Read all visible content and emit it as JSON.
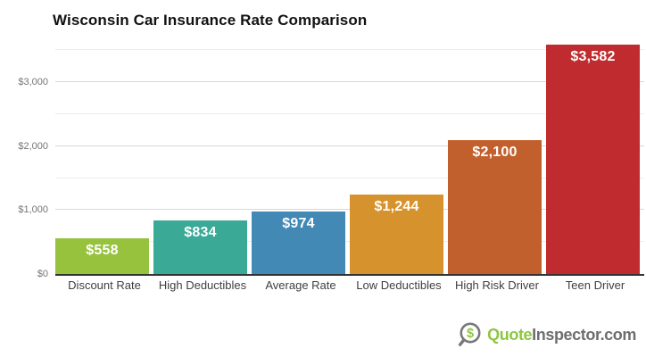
{
  "chart_data": {
    "type": "bar",
    "title": "Wisconsin Car Insurance Rate Comparison",
    "categories": [
      "Discount Rate",
      "High Deductibles",
      "Average Rate",
      "Low Deductibles",
      "High Risk Driver",
      "Teen Driver"
    ],
    "values": [
      558,
      834,
      974,
      1244,
      2100,
      3582
    ],
    "value_labels": [
      "$558",
      "$834",
      "$974",
      "$1,244",
      "$2,100",
      "$3,582"
    ],
    "bar_colors": [
      "#96c23e",
      "#3aa996",
      "#4289b5",
      "#d6922d",
      "#c2602d",
      "#c02b2f"
    ],
    "xlabel": "",
    "ylabel": "",
    "ylim": [
      0,
      3600
    ],
    "gridline_step": 500,
    "yticks": [
      {
        "value": 0,
        "label": "$0"
      },
      {
        "value": 1000,
        "label": "$1,000"
      },
      {
        "value": 2000,
        "label": "$2,000"
      },
      {
        "value": 3000,
        "label": "$3,000"
      }
    ],
    "grid": true,
    "legend_position": "none"
  },
  "colors": {
    "axis": "#333333",
    "grid_major": "#d8d8d8",
    "grid_minor": "#ececec",
    "tick_label": "#757575",
    "category_label": "#3f3f3f",
    "value_label": "#ffffff",
    "background": "#ffffff"
  },
  "footer": {
    "icon": "magnifier-dollar-icon",
    "brand_first": "Quote",
    "brand_rest": "Inspector.com",
    "brand_green": "#8dc63f",
    "brand_gray": "#6d6e71",
    "icon_stroke": "#77787b"
  }
}
